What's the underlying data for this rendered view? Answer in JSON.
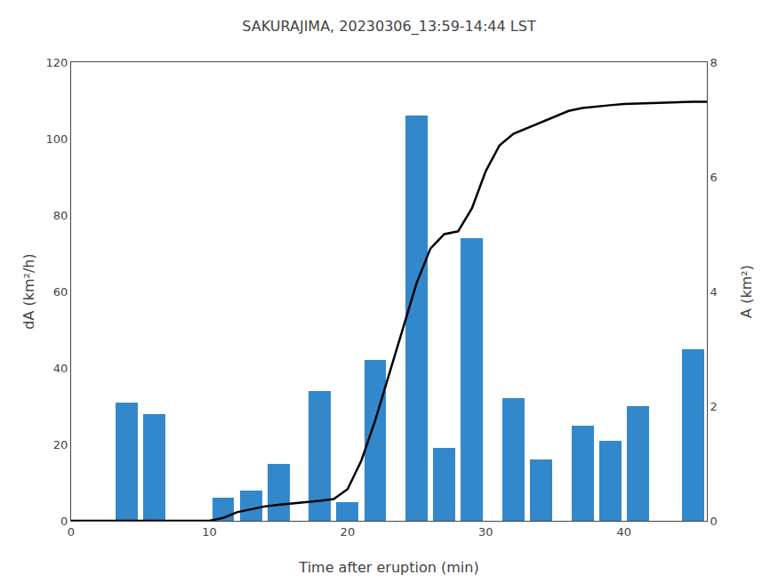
{
  "chart_data": {
    "type": "bar",
    "title": "SAKURAJIMA, 20230306_13:59-14:44 LST",
    "xlabel": "Time after eruption (min)",
    "ylabel": "dA (km²/h)",
    "y2label": "A (km²)",
    "xlim": [
      0,
      46
    ],
    "xticks": [
      0,
      10,
      20,
      30,
      40
    ],
    "ylim": [
      0,
      120
    ],
    "yticks": [
      0,
      20,
      40,
      60,
      80,
      100,
      120
    ],
    "y2lim": [
      0,
      8
    ],
    "y2ticks": [
      0,
      2,
      4,
      6,
      8
    ],
    "grid": false,
    "series": [
      {
        "type": "bar",
        "color": "#3388cc",
        "x": [
          4,
          6,
          11,
          13,
          15,
          18,
          20,
          22,
          25,
          27,
          29,
          32,
          34,
          37,
          39,
          41,
          45
        ],
        "values": [
          31,
          28,
          6,
          8,
          15,
          34,
          5,
          42,
          106,
          19,
          74,
          32,
          16,
          25,
          21,
          30,
          45
        ]
      },
      {
        "type": "line",
        "color": "#000000",
        "axis": "y2",
        "x": [
          0,
          1,
          4,
          6,
          10,
          11,
          12,
          13,
          14,
          15,
          16,
          17,
          18,
          19,
          20,
          21,
          22,
          23,
          24,
          25,
          26,
          27,
          28,
          29,
          30,
          31,
          32,
          33,
          34,
          35,
          36,
          37,
          38,
          39,
          40,
          41,
          42,
          43,
          44,
          45,
          46
        ],
        "values": [
          0,
          0,
          0,
          0,
          0,
          0.05,
          0.15,
          0.2,
          0.25,
          0.28,
          0.3,
          0.32,
          0.35,
          0.38,
          0.55,
          1.05,
          1.75,
          2.55,
          3.35,
          4.15,
          4.75,
          5.0,
          5.05,
          5.45,
          6.1,
          6.55,
          6.75,
          6.85,
          6.95,
          7.05,
          7.15,
          7.2,
          7.23,
          7.25,
          7.27,
          7.28,
          7.29,
          7.3,
          7.31,
          7.31,
          7.31
        ]
      }
    ]
  }
}
